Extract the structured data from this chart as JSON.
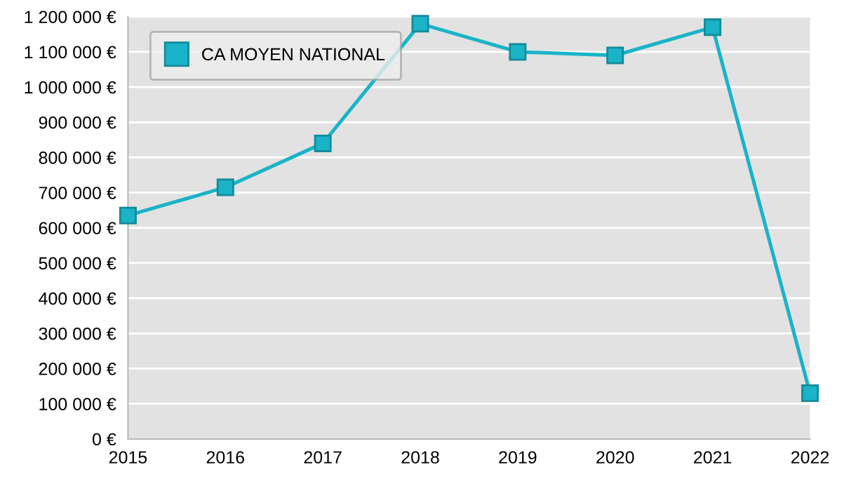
{
  "chart_data": {
    "type": "line",
    "x": [
      2015,
      2016,
      2017,
      2018,
      2019,
      2020,
      2021,
      2022
    ],
    "series": [
      {
        "name": "CA MOYEN NATIONAL",
        "color": "#1ab3c8",
        "values": [
          635000,
          715000,
          840000,
          1180000,
          1100000,
          1090000,
          1170000,
          130000
        ]
      }
    ],
    "xlim": [
      2015,
      2022
    ],
    "xticks": [
      2015,
      2016,
      2017,
      2018,
      2019,
      2020,
      2021,
      2022
    ],
    "ylim": [
      0,
      1200000
    ],
    "yticks": [
      {
        "value": 0,
        "label": "0 €"
      },
      {
        "value": 100000,
        "label": "100 000 €"
      },
      {
        "value": 200000,
        "label": "200 000 €"
      },
      {
        "value": 300000,
        "label": "300 000 €"
      },
      {
        "value": 400000,
        "label": "400 000 €"
      },
      {
        "value": 500000,
        "label": "500 000 €"
      },
      {
        "value": 600000,
        "label": "600 000 €"
      },
      {
        "value": 700000,
        "label": "700 000 €"
      },
      {
        "value": 800000,
        "label": "800 000 €"
      },
      {
        "value": 900000,
        "label": "900 000 €"
      },
      {
        "value": 1000000,
        "label": "1 000 000 €"
      },
      {
        "value": 1100000,
        "label": "1 100 000 €"
      },
      {
        "value": 1200000,
        "label": "1 200 000 €"
      }
    ],
    "grid": "y",
    "legend": "top left",
    "marker": "square",
    "line_style": "solid"
  }
}
